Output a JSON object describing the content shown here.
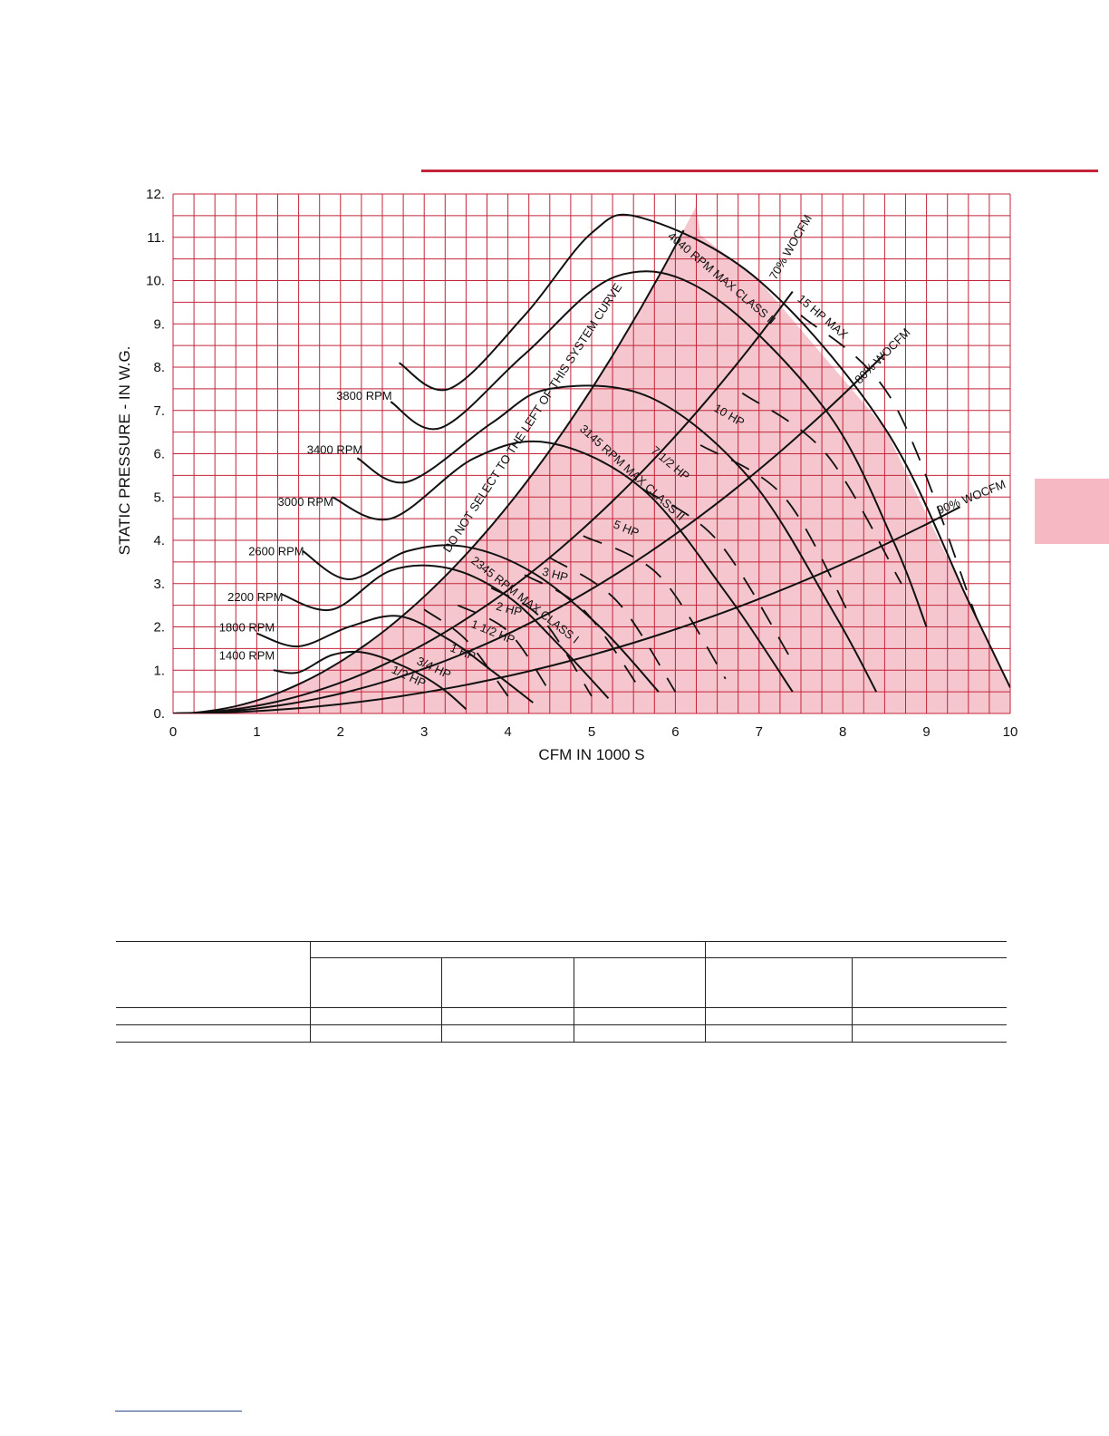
{
  "chart_data": {
    "type": "line",
    "xlabel": "CFM IN 1000 S",
    "ylabel": "STATIC PRESSURE - IN W.G.",
    "xlim": [
      0,
      10
    ],
    "ylim": [
      0,
      12
    ],
    "xticks": [
      "0",
      "1",
      "2",
      "3",
      "4",
      "5",
      "6",
      "7",
      "8",
      "9",
      "10"
    ],
    "yticks": [
      "0.",
      "1.",
      "2.",
      "3.",
      "4.",
      "5.",
      "6.",
      "7.",
      "8.",
      "9.",
      "10.",
      "11.",
      "12."
    ],
    "grid": true,
    "colors": {
      "grid": "#c4243a",
      "region_fill": "#f5c6ce",
      "curve": "#111111"
    },
    "rpm_curves": [
      {
        "name": "1400 RPM",
        "label_at": [
          0.55,
          1.25
        ],
        "points": [
          [
            1.2,
            1.0
          ],
          [
            1.5,
            0.95
          ],
          [
            1.9,
            1.35
          ],
          [
            2.3,
            1.4
          ],
          [
            2.8,
            1.05
          ],
          [
            3.2,
            0.6
          ],
          [
            3.5,
            0.1
          ]
        ]
      },
      {
        "name": "1800 RPM",
        "label_at": [
          0.55,
          1.9
        ],
        "points": [
          [
            1.0,
            1.85
          ],
          [
            1.5,
            1.55
          ],
          [
            2.1,
            2.0
          ],
          [
            2.7,
            2.25
          ],
          [
            3.3,
            1.7
          ],
          [
            3.8,
            1.0
          ],
          [
            4.3,
            0.25
          ]
        ]
      },
      {
        "name": "2200 RPM",
        "label_at": [
          0.65,
          2.6
        ],
        "points": [
          [
            1.3,
            2.75
          ],
          [
            1.9,
            2.4
          ],
          [
            2.6,
            3.3
          ],
          [
            3.3,
            3.35
          ],
          [
            4.0,
            2.7
          ],
          [
            4.6,
            1.6
          ],
          [
            5.2,
            0.35
          ]
        ]
      },
      {
        "name": "2600 RPM",
        "label_at": [
          0.9,
          3.65
        ],
        "points": [
          [
            1.55,
            3.75
          ],
          [
            2.1,
            3.1
          ],
          [
            2.8,
            3.75
          ],
          [
            3.5,
            3.85
          ],
          [
            4.3,
            3.25
          ],
          [
            5.1,
            2.0
          ],
          [
            5.8,
            0.5
          ]
        ]
      },
      {
        "name": "3000 RPM",
        "label_at": [
          1.25,
          4.8
        ],
        "points": [
          [
            1.9,
            5.0
          ],
          [
            2.6,
            4.5
          ],
          [
            3.6,
            5.9
          ],
          [
            4.5,
            6.25
          ],
          [
            5.6,
            5.2
          ],
          [
            6.6,
            2.8
          ],
          [
            7.4,
            0.5
          ]
        ]
      },
      {
        "name": "3400 RPM",
        "label_at": [
          1.6,
          6.0
        ],
        "points": [
          [
            2.2,
            5.9
          ],
          [
            2.8,
            5.35
          ],
          [
            3.8,
            6.7
          ],
          [
            4.5,
            7.5
          ],
          [
            5.7,
            7.3
          ],
          [
            6.9,
            5.4
          ],
          [
            7.9,
            2.3
          ],
          [
            8.4,
            0.5
          ]
        ]
      },
      {
        "name": "3800 RPM",
        "label_at": [
          1.95,
          7.25
        ],
        "points": [
          [
            2.6,
            7.2
          ],
          [
            3.2,
            6.6
          ],
          [
            4.2,
            8.3
          ],
          [
            5.3,
            10.1
          ],
          [
            6.4,
            9.7
          ],
          [
            7.8,
            7.0
          ],
          [
            8.6,
            4.0
          ],
          [
            9.0,
            2.0
          ]
        ]
      },
      {
        "name": "4040 RPM",
        "label_at": [
          0,
          0
        ],
        "points": [
          [
            2.7,
            8.1
          ],
          [
            3.3,
            7.5
          ],
          [
            4.2,
            9.2
          ],
          [
            5.0,
            11.1
          ],
          [
            5.6,
            11.45
          ],
          [
            7.0,
            10.0
          ],
          [
            8.5,
            6.6
          ],
          [
            9.5,
            2.6
          ],
          [
            10.0,
            0.6
          ]
        ]
      }
    ],
    "hp_curves": [
      {
        "name": "1/2 HP",
        "points": [
          [
            3.0,
            2.4
          ],
          [
            3.5,
            1.7
          ],
          [
            4.0,
            0.4
          ]
        ]
      },
      {
        "name": "3/4 HP",
        "points": [
          [
            3.4,
            2.5
          ],
          [
            4.0,
            1.9
          ],
          [
            4.5,
            0.5
          ]
        ]
      },
      {
        "name": "1 HP",
        "points": [
          [
            3.8,
            2.9
          ],
          [
            4.4,
            2.2
          ],
          [
            5.0,
            0.4
          ]
        ]
      },
      {
        "name": "1 1/2 HP",
        "points": [
          [
            4.2,
            3.2
          ],
          [
            4.9,
            2.4
          ],
          [
            5.6,
            0.5
          ]
        ]
      },
      {
        "name": "2 HP",
        "points": [
          [
            4.5,
            3.6
          ],
          [
            5.3,
            2.6
          ],
          [
            6.0,
            0.5
          ]
        ]
      },
      {
        "name": "3 HP",
        "points": [
          [
            4.9,
            4.1
          ],
          [
            5.8,
            3.2
          ],
          [
            6.6,
            0.8
          ]
        ]
      },
      {
        "name": "5 HP",
        "points": [
          [
            5.6,
            5.2
          ],
          [
            6.5,
            4.0
          ],
          [
            7.4,
            1.2
          ]
        ]
      },
      {
        "name": "7 1/2 HP",
        "points": [
          [
            6.3,
            6.2
          ],
          [
            7.3,
            5.0
          ],
          [
            8.1,
            2.2
          ]
        ]
      },
      {
        "name": "10 HP",
        "points": [
          [
            6.8,
            7.4
          ],
          [
            7.8,
            6.0
          ],
          [
            8.7,
            3.0
          ]
        ]
      },
      {
        "name": "15 HP MAX",
        "points": [
          [
            7.5,
            9.2
          ],
          [
            8.6,
            7.2
          ],
          [
            9.6,
            2.2
          ]
        ]
      }
    ],
    "system_curves": [
      {
        "name": "DO NOT SELECT TO THE LEFT OF THIS SYSTEM CURVE",
        "k": 0.3,
        "x_max": 6.1
      },
      {
        "name": "70% WOCFM",
        "k": 0.178,
        "x_max": 7.4
      },
      {
        "name": "80% WOCFM",
        "k": 0.115,
        "x_max": 8.5
      },
      {
        "name": "90% WOCFM",
        "k": 0.054,
        "x_max": 9.4
      }
    ],
    "annotations": [
      {
        "text": "DO NOT SELECT TO THE LEFT OF THIS SYSTEM CURVE",
        "x": 3.3,
        "y": 3.7,
        "angle": -57
      },
      {
        "text": "70% WOCFM",
        "x": 7.2,
        "y": 10.0,
        "angle": -60
      },
      {
        "text": "80% WOCFM",
        "x": 8.2,
        "y": 7.6,
        "angle": -45
      },
      {
        "text": "90% WOCFM",
        "x": 9.15,
        "y": 4.6,
        "angle": -22
      },
      {
        "text": "4040 RPM MAX CLASS II",
        "x": 5.9,
        "y": 11.0,
        "angle": 40
      },
      {
        "text": "3145 RPM MAX CLASS II",
        "x": 4.85,
        "y": 6.55,
        "angle": 42
      },
      {
        "text": "2345 RPM MAX CLASS I",
        "x": 3.55,
        "y": 3.5,
        "angle": 38
      },
      {
        "text": "15 HP MAX",
        "x": 7.45,
        "y": 9.55,
        "angle": 40
      },
      {
        "text": "10 HP",
        "x": 6.45,
        "y": 7.0,
        "angle": 30
      },
      {
        "text": "7 1/2 HP",
        "x": 5.7,
        "y": 6.05,
        "angle": 40
      },
      {
        "text": "5 HP",
        "x": 5.25,
        "y": 4.3,
        "angle": 22
      },
      {
        "text": "3 HP",
        "x": 4.4,
        "y": 3.2,
        "angle": 15
      },
      {
        "text": "2 HP",
        "x": 3.85,
        "y": 2.4,
        "angle": 15
      },
      {
        "text": "1 1/2 HP",
        "x": 3.55,
        "y": 2.0,
        "angle": 22
      },
      {
        "text": "1 HP",
        "x": 3.3,
        "y": 1.45,
        "angle": 22
      },
      {
        "text": "3/4 HP",
        "x": 2.9,
        "y": 1.15,
        "angle": 25
      },
      {
        "text": "1/2 HP",
        "x": 2.6,
        "y": 0.95,
        "angle": 25
      }
    ]
  }
}
